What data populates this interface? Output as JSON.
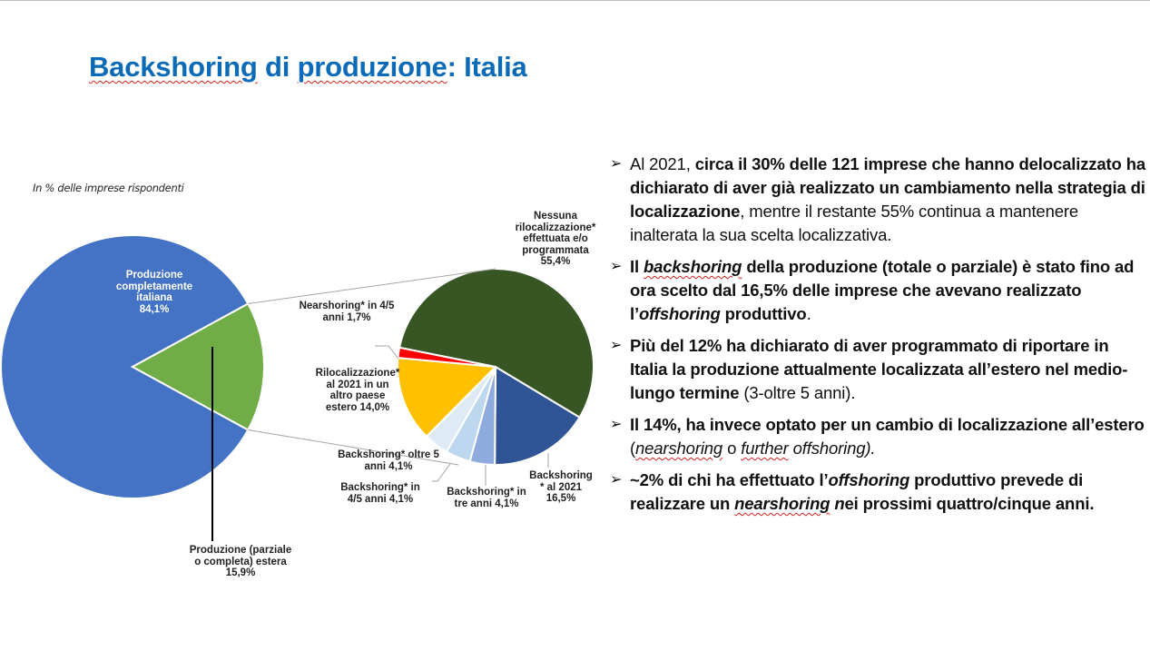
{
  "slide": {
    "title_part1": "Backshoring",
    "title_part2": " di ",
    "title_part3": "produzione",
    "title_part4": ": Italia",
    "subtitle": "In % delle imprese rispondenti"
  },
  "colors": {
    "title": "#0b6bb8",
    "main_blue": "#4472c4",
    "main_green": "#70ad47",
    "dark_green": "#375623",
    "dark_blue": "#2f5597",
    "mid_blue": "#8faadc",
    "light_blue": "#bdd7ee",
    "lightest_blue": "#deebf7",
    "yellow": "#ffc000",
    "red": "#ff0000"
  },
  "chart_data": [
    {
      "type": "pie",
      "title": "Localizzazione produzione",
      "categories": [
        "Produzione completamente italiana",
        "Produzione (parziale o completa) estera"
      ],
      "values": [
        84.1,
        15.9
      ],
      "labels": [
        "Produzione\ncompletamente\nitaliana\n84,1%",
        "Produzione (parziale\no completa) estera\n15,9%"
      ]
    },
    {
      "type": "pie",
      "title": "Dettaglio produzione estera (pie of pie)",
      "categories": [
        "Backshoring* al 2021",
        "Backshoring* in tre anni",
        "Backshoring* in 4/5 anni",
        "Backshoring* oltre 5 anni",
        "Rilocalizzazione* al 2021 in un altro paese estero",
        "Nearshoring* in 4/5 anni",
        "Nessuna rilocalizzazione* effettuata e/o programmata"
      ],
      "values": [
        16.5,
        4.1,
        4.1,
        4.1,
        14.0,
        1.7,
        55.4
      ],
      "labels": [
        "Backshoring\n* al 2021\n16,5%",
        "Backshoring* in\ntre anni 4,1%",
        "Backshoring* in\n4/5 anni 4,1%",
        "Backshoring* oltre 5\nanni 4,1%",
        "Rilocalizzazione*\nal 2021 in un\naltro paese\nestero 14,0%",
        "Nearshoring* in 4/5\nanni 1,7%",
        "Nessuna\nrilocalizzazione*\neffettuata e/o\nprogrammata\n55,4%"
      ]
    }
  ],
  "bullets": [
    {
      "parts": [
        {
          "t": "Al 2021, ",
          "s": ""
        },
        {
          "t": "circa il 30% delle 121 imprese che hanno delocalizzato ha dichiarato di aver già realizzato un cambiamento nella strategia di localizzazione",
          "s": "b"
        },
        {
          "t": ", mentre il restante 55% continua a mantenere inalterata la sua scelta localizzativa.",
          "s": ""
        }
      ]
    },
    {
      "parts": [
        {
          "t": "Il ",
          "s": "b"
        },
        {
          "t": "backshoring",
          "s": "b i u"
        },
        {
          "t": " della produzione (totale o parziale) è stato fino ad ora scelto dal 16,5% delle imprese che avevano realizzato l’",
          "s": "b"
        },
        {
          "t": "offshoring",
          "s": "b i"
        },
        {
          "t": " produttivo",
          "s": "b"
        },
        {
          "t": ".",
          "s": ""
        }
      ]
    },
    {
      "parts": [
        {
          "t": "Più del 12% ha dichiarato di aver programmato di riportare in Italia la produzione attualmente localizzata all’estero nel medio-lungo termine",
          "s": "b"
        },
        {
          "t": " (3-oltre 5 anni).",
          "s": ""
        }
      ]
    },
    {
      "parts": [
        {
          "t": "Il 14%, ha invece optato per un cambio di localizzazione all’estero",
          "s": "b"
        },
        {
          "t": " (",
          "s": ""
        },
        {
          "t": "nearshoring",
          "s": "i u"
        },
        {
          "t": " o ",
          "s": ""
        },
        {
          "t": "further",
          "s": "i u"
        },
        {
          "t": " offshoring).",
          "s": "i"
        }
      ]
    },
    {
      "parts": [
        {
          "t": "~2% di chi ha effettuato l’",
          "s": "b"
        },
        {
          "t": "offshoring",
          "s": "b i"
        },
        {
          "t": " produttivo prevede di realizzare un ",
          "s": "b"
        },
        {
          "t": "nearshoring",
          "s": "b i u"
        },
        {
          "t": " n",
          "s": "b i"
        },
        {
          "t": "ei prossimi quattro/cinque anni.",
          "s": "b"
        }
      ]
    }
  ],
  "bullet_icon": "arrowhead-bullet-icon"
}
